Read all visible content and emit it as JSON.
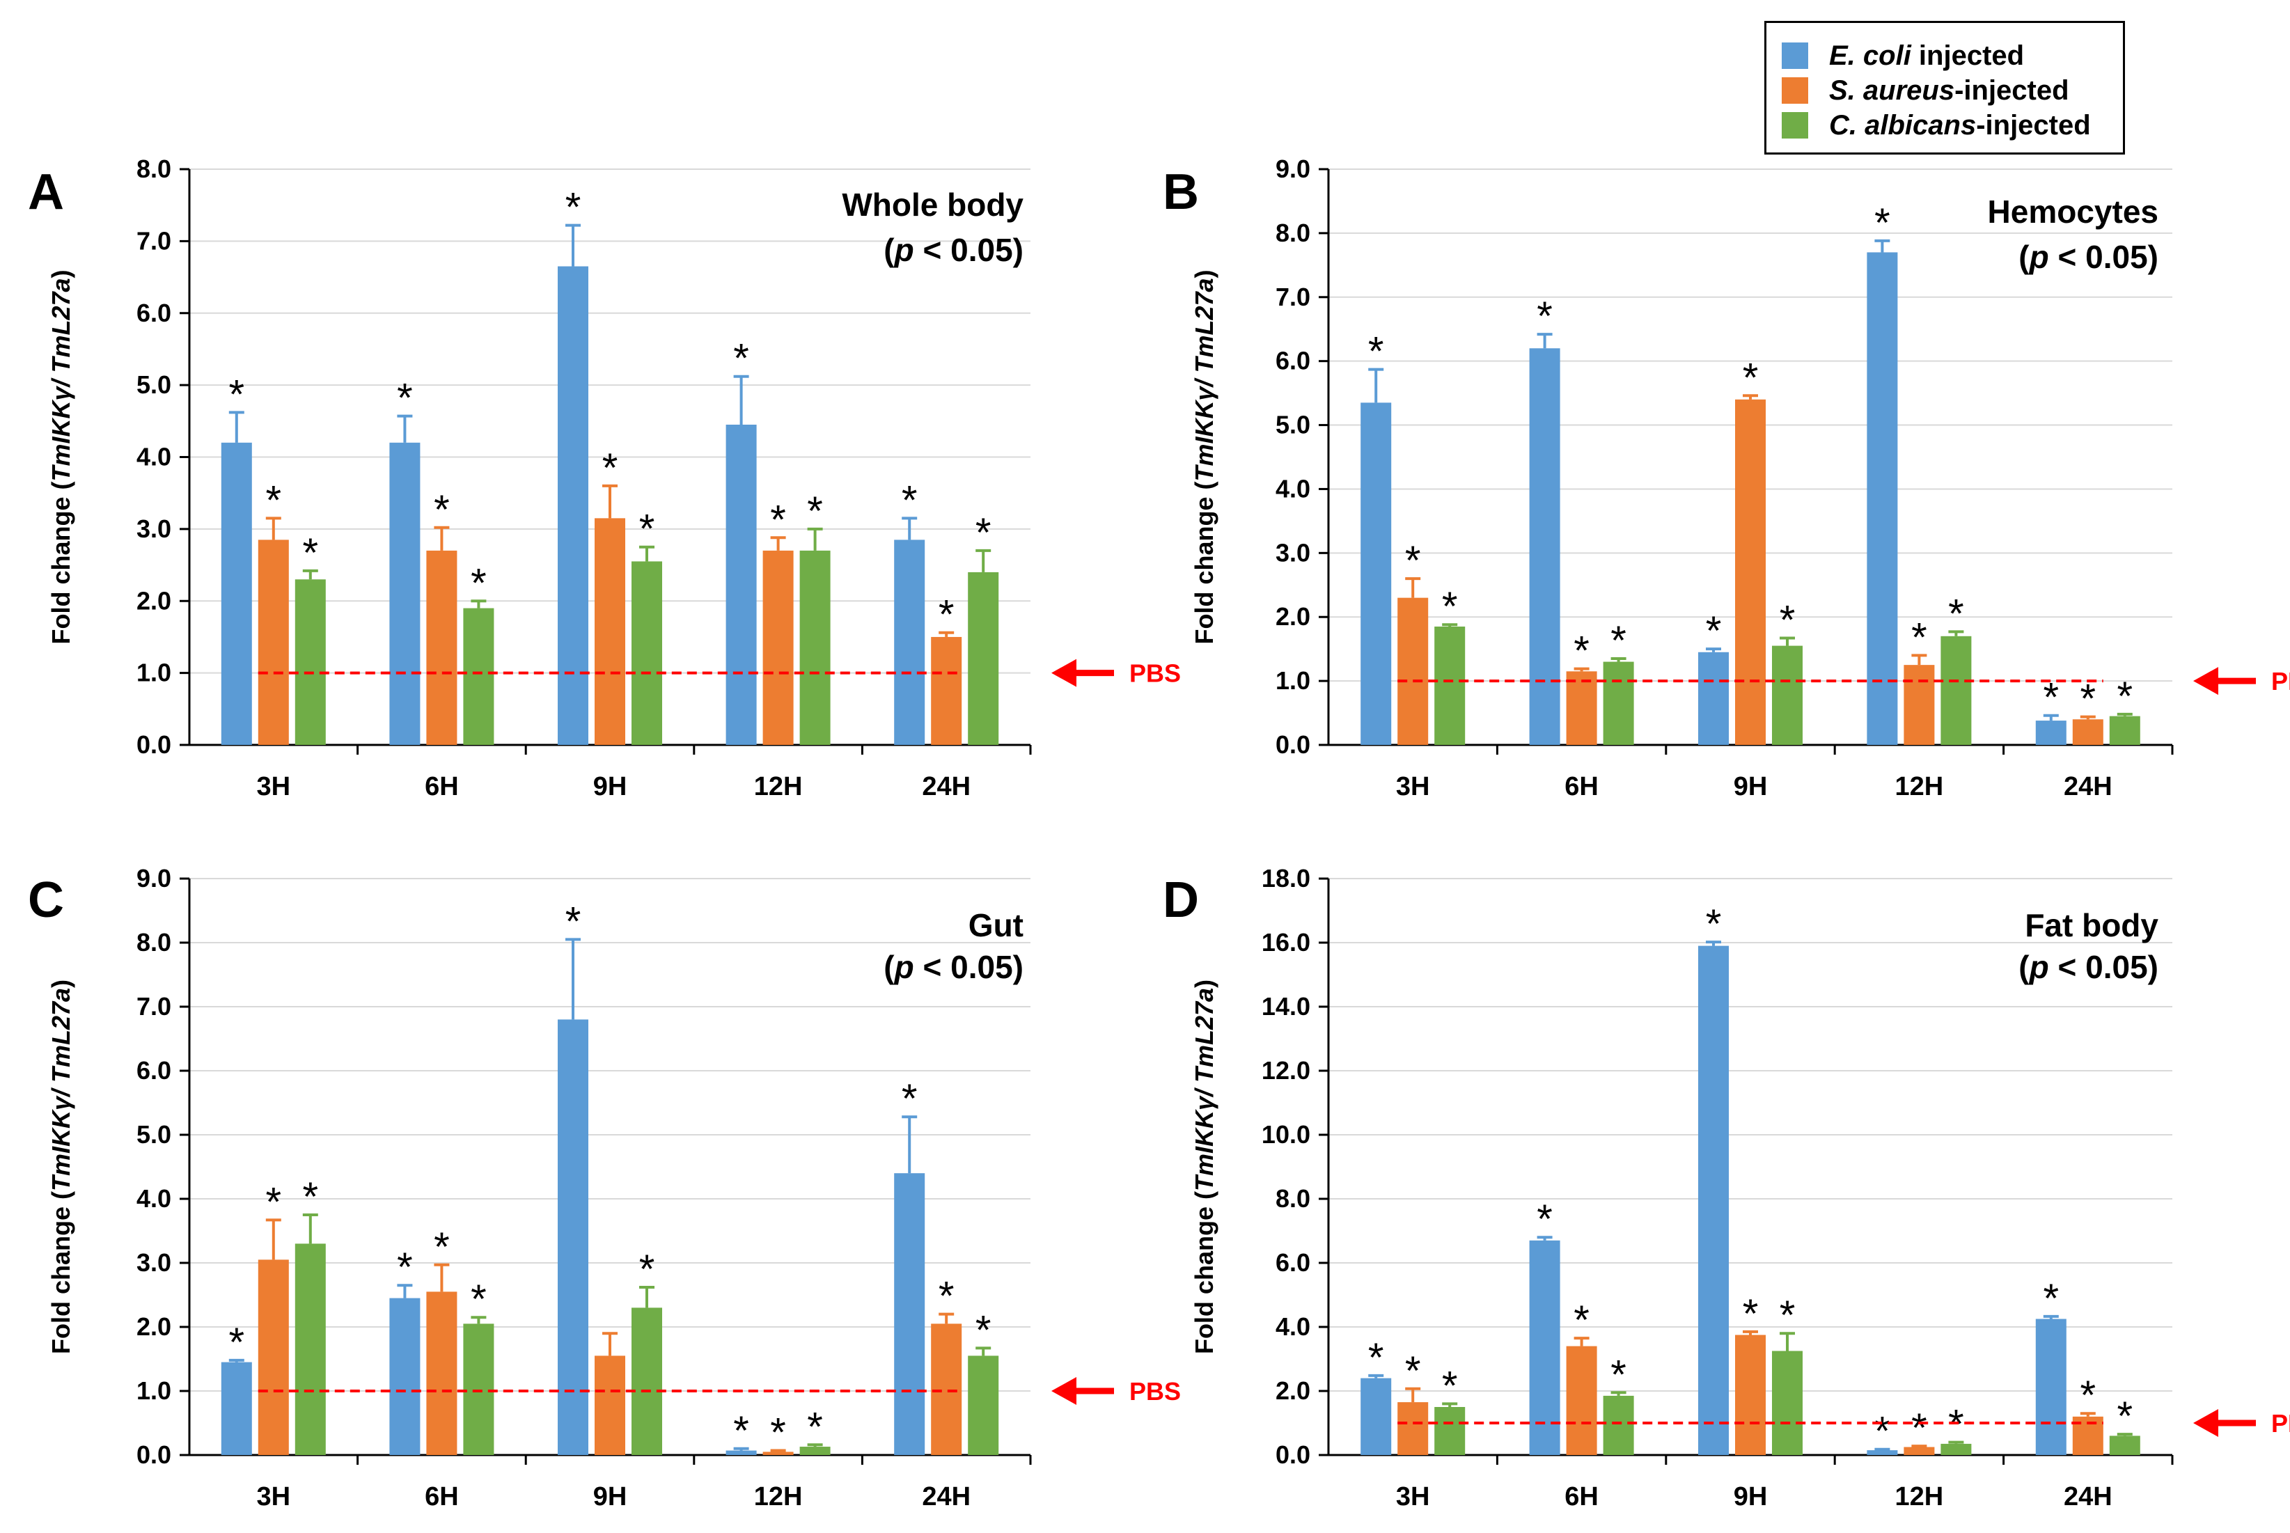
{
  "colors": {
    "series": [
      "#5b9bd5",
      "#ed7d31",
      "#70ad47"
    ],
    "error_bar_colors": [
      "#5b9bd5",
      "#ed7d31",
      "#70ad47"
    ],
    "grid": "#d9d9d9",
    "axis": "#000000",
    "pbs_line": "#ff0000"
  },
  "legend": {
    "items": [
      {
        "species": "E. coli",
        "suffix": " injected"
      },
      {
        "species": "S. aureus",
        "suffix": "-injected"
      },
      {
        "species": "C. albicans",
        "suffix": "-injected"
      }
    ]
  },
  "chart_data": [
    {
      "type": "bar",
      "panel_label": "A",
      "title": "Whole body",
      "subtitle": {
        "pre": "(",
        "italic": "p",
        "post": " < 0.05)"
      },
      "ylabel": {
        "pre": "Fold change (",
        "italic": "TmIKKγ/ TmL27a",
        "post": ")"
      },
      "ylim": [
        0,
        8
      ],
      "yticks": [
        "0.0",
        "1.0",
        "2.0",
        "3.0",
        "4.0",
        "5.0",
        "6.0",
        "7.0",
        "8.0"
      ],
      "categories": [
        "3H",
        "6H",
        "9H",
        "12H",
        "24H"
      ],
      "series": [
        {
          "name": "E. coli injected",
          "values": [
            4.2,
            4.2,
            6.65,
            4.45,
            2.85
          ],
          "errors": [
            0.42,
            0.37,
            0.57,
            0.67,
            0.3
          ],
          "significant": [
            true,
            true,
            true,
            true,
            true
          ]
        },
        {
          "name": "S. aureus-injected",
          "values": [
            2.85,
            2.7,
            3.15,
            2.7,
            1.5
          ],
          "errors": [
            0.3,
            0.32,
            0.45,
            0.18,
            0.06
          ],
          "significant": [
            true,
            true,
            true,
            true,
            true
          ]
        },
        {
          "name": "C. albicans-injected",
          "values": [
            2.3,
            1.9,
            2.55,
            2.7,
            2.4
          ],
          "errors": [
            0.12,
            0.1,
            0.2,
            0.3,
            0.3
          ],
          "significant": [
            true,
            true,
            true,
            true,
            true
          ]
        }
      ],
      "annotation_marker": "*",
      "reference_line": {
        "value": 1.0,
        "label": "PBS",
        "show_label": true
      }
    },
    {
      "type": "bar",
      "panel_label": "B",
      "title": "Hemocytes",
      "subtitle": {
        "pre": "(",
        "italic": "p",
        "post": " < 0.05)"
      },
      "ylabel": {
        "pre": "Fold change (",
        "italic": "TmIKKγ/ TmL27a",
        "post": ")"
      },
      "ylim": [
        0,
        9
      ],
      "yticks": [
        "0.0",
        "1.0",
        "2.0",
        "3.0",
        "4.0",
        "5.0",
        "6.0",
        "7.0",
        "8.0",
        "9.0"
      ],
      "categories": [
        "3H",
        "6H",
        "9H",
        "12H",
        "24H"
      ],
      "series": [
        {
          "name": "E. coli injected",
          "values": [
            5.35,
            6.2,
            1.45,
            7.7,
            0.38
          ],
          "errors": [
            0.52,
            0.22,
            0.05,
            0.18,
            0.08
          ],
          "significant": [
            true,
            true,
            true,
            true,
            true
          ]
        },
        {
          "name": "S. aureus-injected",
          "values": [
            2.3,
            1.15,
            5.4,
            1.25,
            0.4
          ],
          "errors": [
            0.3,
            0.04,
            0.06,
            0.15,
            0.04
          ],
          "significant": [
            true,
            true,
            true,
            true,
            true
          ]
        },
        {
          "name": "C. albicans-injected",
          "values": [
            1.85,
            1.3,
            1.55,
            1.7,
            0.45
          ],
          "errors": [
            0.03,
            0.05,
            0.12,
            0.07,
            0.03
          ],
          "significant": [
            true,
            true,
            true,
            true,
            true
          ]
        }
      ],
      "annotation_marker": "*",
      "reference_line": {
        "value": 1.0,
        "label": "PBS",
        "show_label": true
      }
    },
    {
      "type": "bar",
      "panel_label": "C",
      "title": "Gut",
      "subtitle": {
        "pre": "(",
        "italic": "p",
        "post": " < 0.05)"
      },
      "ylabel": {
        "pre": "Fold change (",
        "italic": "TmIKKγ/ TmL27a",
        "post": ")"
      },
      "ylim": [
        0,
        9
      ],
      "yticks": [
        "0.0",
        "1.0",
        "2.0",
        "3.0",
        "4.0",
        "5.0",
        "6.0",
        "7.0",
        "8.0",
        "9.0"
      ],
      "categories": [
        "3H",
        "6H",
        "9H",
        "12H",
        "24H"
      ],
      "series": [
        {
          "name": "E. coli injected",
          "values": [
            1.45,
            2.45,
            6.8,
            0.07,
            4.4
          ],
          "errors": [
            0.03,
            0.2,
            1.25,
            0.03,
            0.88
          ],
          "significant": [
            true,
            true,
            true,
            true,
            true
          ]
        },
        {
          "name": "S. aureus-injected",
          "values": [
            3.05,
            2.55,
            1.55,
            0.05,
            2.05
          ],
          "errors": [
            0.62,
            0.42,
            0.35,
            0.02,
            0.15
          ],
          "significant": [
            true,
            true,
            false,
            true,
            true
          ]
        },
        {
          "name": "C. albicans-injected",
          "values": [
            3.3,
            2.05,
            2.3,
            0.13,
            1.55
          ],
          "errors": [
            0.45,
            0.1,
            0.32,
            0.03,
            0.12
          ],
          "significant": [
            true,
            true,
            true,
            true,
            true
          ]
        }
      ],
      "annotation_marker": "*",
      "reference_line": {
        "value": 1.0,
        "label": "PBS",
        "show_label": true
      }
    },
    {
      "type": "bar",
      "panel_label": "D",
      "title": "Fat body",
      "subtitle": {
        "pre": "(",
        "italic": "p",
        "post": " < 0.05)"
      },
      "ylabel": {
        "pre": "Fold change (",
        "italic": "TmIKKγ/ TmL27a",
        "post": ")"
      },
      "ylim": [
        0,
        18
      ],
      "yticks": [
        "0.0",
        "2.0",
        "4.0",
        "6.0",
        "8.0",
        "10.0",
        "12.0",
        "14.0",
        "16.0",
        "18.0"
      ],
      "categories": [
        "3H",
        "6H",
        "9H",
        "12H",
        "24H"
      ],
      "series": [
        {
          "name": "E. coli injected",
          "values": [
            2.4,
            6.7,
            15.9,
            0.15,
            4.25
          ],
          "errors": [
            0.08,
            0.1,
            0.12,
            0.03,
            0.08
          ],
          "significant": [
            true,
            true,
            true,
            true,
            true
          ]
        },
        {
          "name": "S. aureus-injected",
          "values": [
            1.65,
            3.4,
            3.75,
            0.25,
            1.2
          ],
          "errors": [
            0.42,
            0.25,
            0.1,
            0.03,
            0.1
          ],
          "significant": [
            true,
            true,
            true,
            true,
            true
          ]
        },
        {
          "name": "C. albicans-injected",
          "values": [
            1.5,
            1.85,
            3.25,
            0.35,
            0.6
          ],
          "errors": [
            0.1,
            0.1,
            0.55,
            0.05,
            0.05
          ],
          "significant": [
            true,
            true,
            true,
            true,
            true
          ]
        }
      ],
      "annotation_marker": "*",
      "reference_line": {
        "value": 1.0,
        "label": "PBS",
        "show_label": true
      }
    }
  ]
}
